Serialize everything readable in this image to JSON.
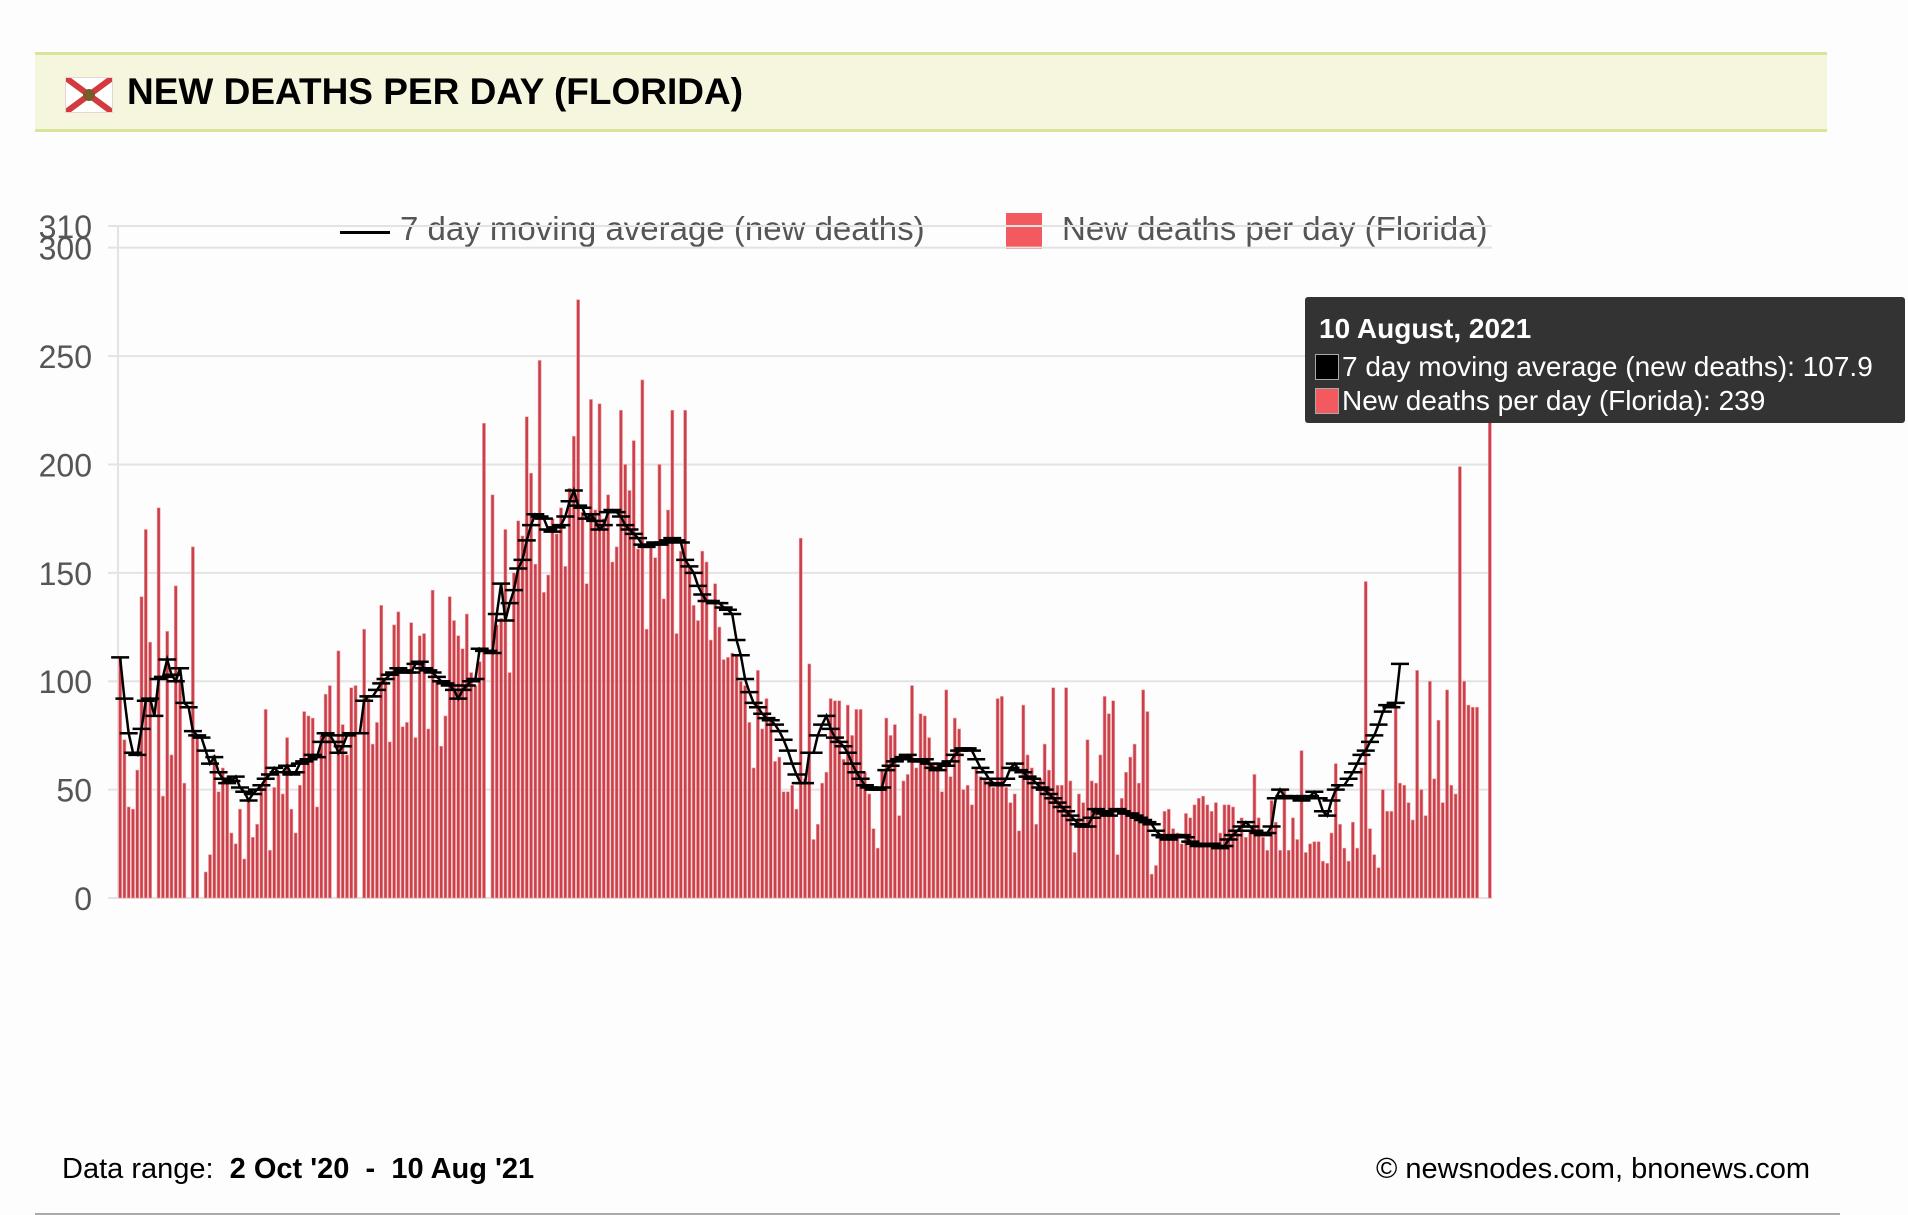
{
  "header": {
    "flag_icon": "florida-flag-icon",
    "title": "NEW DEATHS PER DAY (FLORIDA)"
  },
  "legend": {
    "items": [
      {
        "label": "7 day moving average (new deaths)",
        "symbol": "line",
        "color": "#000000"
      },
      {
        "label": "New deaths per day (Florida)",
        "symbol": "square",
        "color": "#f25a5f"
      }
    ]
  },
  "tooltip": {
    "date": "10 August, 2021",
    "rows": [
      {
        "label": "7 day moving average (new deaths): 107.9",
        "color": "#000000"
      },
      {
        "label": "New deaths per day (Florida): 239",
        "color": "#f25a5f"
      }
    ]
  },
  "footer": {
    "range_label": "Data range:",
    "range_start": "2 Oct '20",
    "range_sep": "-",
    "range_end": "10 Aug '21",
    "credit": "© newsnodes.com, bnonews.com"
  },
  "colors": {
    "bar": "#c8414b",
    "bar_highlight": "#f5a3a6",
    "line": "#000000",
    "grid": "#e3e3e3",
    "header_bg": "#f6f6de",
    "header_border": "#dbe39a",
    "tooltip_bg": "#333333"
  },
  "chart_data": {
    "type": "bar",
    "title": "NEW DEATHS PER DAY (FLORIDA)",
    "xlabel": "",
    "ylabel": "",
    "x_start": "2020-10-02",
    "x_end": "2021-08-10",
    "ylim": [
      0,
      310
    ],
    "yticks": [
      0,
      50,
      100,
      150,
      200,
      250,
      300,
      310
    ],
    "grid": true,
    "legend_position": "top-center",
    "series": [
      {
        "name": "New deaths per day (Florida)",
        "type": "bar",
        "values": [
          111,
          73,
          42,
          41,
          59,
          139,
          170,
          118,
          0,
          180,
          47,
          123,
          66,
          144,
          101,
          53,
          0,
          162,
          75,
          0,
          12,
          20,
          66,
          49,
          60,
          54,
          30,
          25,
          41,
          18,
          46,
          28,
          34,
          52,
          87,
          22,
          51,
          57,
          48,
          74,
          41,
          30,
          52,
          86,
          84,
          83,
          42,
          75,
          94,
          98,
          0,
          114,
          80,
          66,
          97,
          98,
          0,
          124,
          92,
          71,
          81,
          135,
          100,
          72,
          126,
          132,
          79,
          81,
          127,
          74,
          121,
          122,
          78,
          142,
          100,
          70,
          84,
          139,
          128,
          121,
          115,
          131,
          104,
          98,
          109,
          219,
          0,
          186,
          126,
          129,
          170,
          104,
          150,
          174,
          167,
          222,
          196,
          154,
          248,
          141,
          149,
          175,
          168,
          180,
          153,
          189,
          213,
          276,
          178,
          145,
          230,
          179,
          228,
          175,
          186,
          155,
          162,
          225,
          200,
          188,
          211,
          161,
          239,
          124,
          164,
          157,
          200,
          138,
          179,
          225,
          122,
          160,
          225,
          153,
          135,
          128,
          160,
          155,
          119,
          145,
          125,
          110,
          111,
          113,
          112,
          100,
          98,
          81,
          60,
          105,
          78,
          92,
          83,
          63,
          65,
          49,
          49,
          52,
          41,
          166,
          55,
          108,
          27,
          34,
          53,
          58,
          92,
          91,
          91,
          64,
          89,
          75,
          87,
          87,
          58,
          48,
          32,
          23,
          59,
          83,
          75,
          80,
          38,
          54,
          57,
          98,
          60,
          85,
          84,
          74,
          62,
          62,
          49,
          96,
          56,
          83,
          78,
          50,
          52,
          43,
          60,
          56,
          55,
          54,
          51,
          92,
          93,
          51,
          44,
          48,
          31,
          89,
          66,
          60,
          34,
          55,
          71,
          59,
          97,
          52,
          52,
          97,
          54,
          21,
          48,
          44,
          73,
          54,
          53,
          66,
          93,
          85,
          91,
          20,
          46,
          58,
          65,
          71,
          53,
          96,
          86,
          11,
          15,
          28,
          40,
          41,
          32,
          30,
          25,
          39,
          37,
          43,
          46,
          47,
          43,
          40,
          44,
          30,
          43,
          43,
          42,
          30,
          37,
          28,
          31,
          57,
          37,
          28,
          22,
          45,
          35,
          22,
          50,
          22,
          37,
          27,
          68,
          21,
          25,
          26,
          26,
          17,
          16,
          30,
          62,
          34,
          23,
          17,
          35,
          23,
          60,
          146,
          32,
          20,
          14,
          50,
          40,
          40,
          89,
          53,
          52,
          44,
          36,
          105,
          50,
          38,
          100,
          55,
          82,
          44,
          96,
          52,
          48,
          199,
          100,
          89,
          88,
          88,
          0,
          0,
          239
        ]
      },
      {
        "name": "7 day moving average (new deaths)",
        "type": "line",
        "values": [
          111,
          92,
          76,
          67,
          66,
          78,
          91,
          92,
          84,
          101,
          102,
          110,
          103,
          100,
          106,
          90,
          88,
          77,
          75,
          74,
          68,
          62,
          65,
          58,
          55,
          53,
          54,
          56,
          51,
          49,
          45,
          48,
          50,
          52,
          55,
          57,
          60,
          58,
          58,
          61,
          57,
          58,
          62,
          63,
          64,
          66,
          65,
          72,
          76,
          75,
          72,
          67,
          70,
          75,
          76,
          76,
          76,
          91,
          93,
          93,
          96,
          99,
          101,
          103,
          104,
          106,
          105,
          104,
          104,
          108,
          109,
          106,
          105,
          104,
          102,
          100,
          99,
          98,
          96,
          92,
          96,
          98,
          100,
          101,
          115,
          114,
          114,
          113,
          131,
          145,
          128,
          136,
          142,
          152,
          156,
          165,
          172,
          177,
          176,
          175,
          170,
          169,
          171,
          172,
          176,
          183,
          188,
          181,
          180,
          175,
          177,
          174,
          170,
          172,
          178,
          179,
          178,
          176,
          172,
          170,
          168,
          166,
          163,
          162,
          163,
          164,
          163,
          164,
          165,
          166,
          165,
          164,
          156,
          153,
          150,
          144,
          140,
          137,
          137,
          136,
          136,
          134,
          133,
          131,
          119,
          112,
          101,
          95,
          90,
          88,
          85,
          83,
          82,
          80,
          77,
          73,
          68,
          62,
          57,
          53,
          53,
          67,
          67,
          75,
          80,
          84,
          78,
          74,
          72,
          70,
          67,
          62,
          58,
          55,
          52,
          51,
          50,
          50,
          51,
          59,
          61,
          63,
          64,
          65,
          66,
          64,
          63,
          63,
          64,
          62,
          60,
          59,
          62,
          61,
          63,
          66,
          68,
          69,
          69,
          68,
          64,
          60,
          58,
          55,
          53,
          52,
          52,
          55,
          60,
          62,
          59,
          58,
          56,
          55,
          53,
          51,
          50,
          48,
          46,
          44,
          42,
          40,
          38,
          36,
          34,
          33,
          33,
          37,
          41,
          40,
          39,
          38,
          40,
          41,
          40,
          39,
          39,
          38,
          37,
          36,
          35,
          34,
          31,
          29,
          28,
          27,
          28,
          29,
          29,
          28,
          26,
          25,
          24,
          24,
          25,
          25,
          24,
          23,
          24,
          27,
          29,
          31,
          33,
          35,
          33,
          31,
          30,
          29,
          30,
          33,
          46,
          50,
          47,
          46,
          46,
          47,
          45,
          46,
          47,
          49,
          46,
          40,
          38,
          45,
          50,
          52,
          52,
          55,
          58,
          62,
          66,
          68,
          72,
          75,
          80,
          86,
          89,
          88,
          90,
          108
        ]
      }
    ],
    "tooltip_point": {
      "date": "10 August, 2021",
      "moving_average": 107.9,
      "new_deaths": 239
    }
  }
}
